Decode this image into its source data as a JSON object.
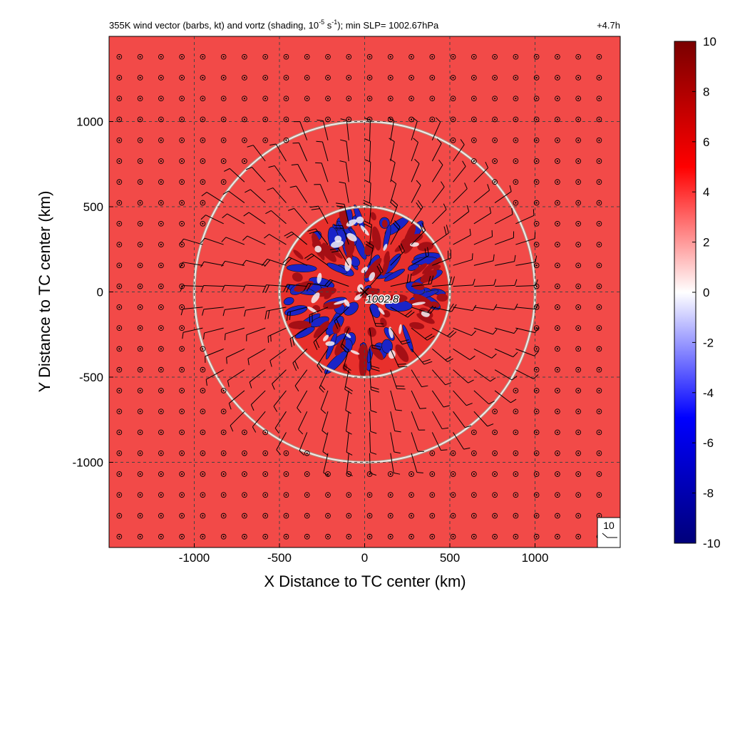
{
  "chart_data": {
    "type": "heatmap",
    "title": "355K wind vector (barbs, kt) and vortz (shading, 10",
    "title_exp1": "-5",
    "title_mid": " s",
    "title_exp2": "-1",
    "title_tail": "); min SLP= 1002.67hPa",
    "time_label": "+4.7h",
    "xlabel": "X Distance to TC center (km)",
    "ylabel": "Y Distance to TC center (km)",
    "xlim": [
      -1500,
      1500
    ],
    "ylim": [
      -1500,
      1500
    ],
    "x_ticks": [
      {
        "value": -1000,
        "label": "-1000"
      },
      {
        "value": -500,
        "label": "-500"
      },
      {
        "value": 0,
        "label": "0"
      },
      {
        "value": 500,
        "label": "500"
      },
      {
        "value": 1000,
        "label": "1000"
      }
    ],
    "y_ticks": [
      {
        "value": 1000,
        "label": "1000"
      },
      {
        "value": 500,
        "label": "500"
      },
      {
        "value": 0,
        "label": "0"
      },
      {
        "value": -500,
        "label": "-500"
      },
      {
        "value": -1000,
        "label": "-1000"
      }
    ],
    "grid": true,
    "range_rings_km": [
      500,
      1000
    ],
    "center_marker": {
      "x": 0,
      "y": 0,
      "label": "1002.8"
    },
    "reference_barb_label": "10",
    "background_vorticity": 5,
    "colorbar": {
      "min": -10,
      "max": 10,
      "ticks": [
        {
          "value": 10,
          "label": "10"
        },
        {
          "value": 8,
          "label": "8"
        },
        {
          "value": 6,
          "label": "6"
        },
        {
          "value": 4,
          "label": "4"
        },
        {
          "value": 2,
          "label": "2"
        },
        {
          "value": 0,
          "label": "0"
        },
        {
          "value": -2,
          "label": "-2"
        },
        {
          "value": -4,
          "label": "-4"
        },
        {
          "value": -6,
          "label": "-6"
        },
        {
          "value": -8,
          "label": "-8"
        },
        {
          "value": -10,
          "label": "-10"
        }
      ],
      "colors": [
        "#00007a",
        "#0000ff",
        "#ffffff",
        "#ff0000",
        "#7a0000"
      ]
    },
    "colors": {
      "field": "#f24a48",
      "negative_vorticity": "#1a24c8",
      "positive_vorticity": "#a50f15",
      "ring": "#f4e8e8",
      "grid": "#444444"
    }
  }
}
